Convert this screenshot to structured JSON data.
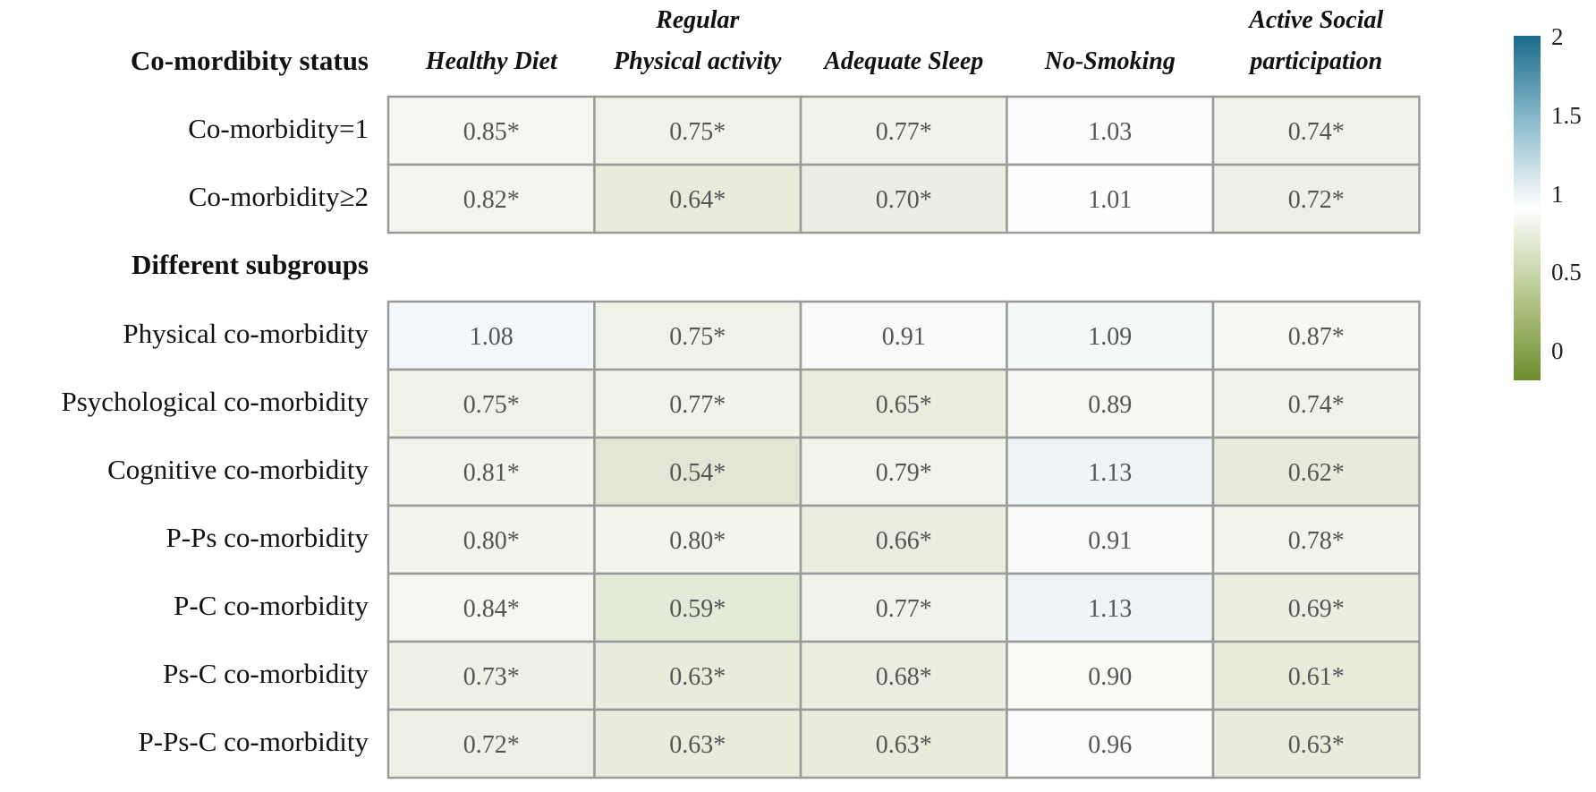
{
  "chart_data": {
    "type": "heatmap",
    "columns": [
      "Healthy Diet",
      "Regular Physical activity",
      "Adequate Sleep",
      "No-Smoking",
      "Active Social participation"
    ],
    "column_header_lines": [
      [
        "Healthy Diet"
      ],
      [
        "Regular",
        "Physical activity"
      ],
      [
        "Adequate Sleep"
      ],
      [
        "No-Smoking"
      ],
      [
        "Active Social",
        "participation"
      ]
    ],
    "sections": [
      {
        "title": "Co-mordibity status",
        "rows": [
          {
            "label": "Co-morbidity=1",
            "values": [
              0.85,
              0.75,
              0.77,
              1.03,
              0.74
            ],
            "display": [
              "0.85*",
              "0.75*",
              "0.77*",
              "1.03",
              "0.74*"
            ]
          },
          {
            "label": "Co-morbidity≥2",
            "values": [
              0.82,
              0.64,
              0.7,
              1.01,
              0.72
            ],
            "display": [
              "0.82*",
              "0.64*",
              "0.70*",
              "1.01",
              "0.72*"
            ]
          }
        ]
      },
      {
        "title": "Different subgroups",
        "rows": [
          {
            "label": "Physical co-morbidity",
            "values": [
              1.08,
              0.75,
              0.91,
              1.09,
              0.87
            ],
            "display": [
              "1.08",
              "0.75*",
              "0.91",
              "1.09",
              "0.87*"
            ]
          },
          {
            "label": "Psychological  co-morbidity",
            "values": [
              0.75,
              0.77,
              0.65,
              0.89,
              0.74
            ],
            "display": [
              "0.75*",
              "0.77*",
              "0.65*",
              "0.89",
              "0.74*"
            ]
          },
          {
            "label": "Cognitive  co-morbidity",
            "values": [
              0.81,
              0.54,
              0.79,
              1.13,
              0.62
            ],
            "display": [
              "0.81*",
              "0.54*",
              "0.79*",
              "1.13",
              "0.62*"
            ]
          },
          {
            "label": "P-Ps co-morbidity",
            "values": [
              0.8,
              0.8,
              0.66,
              0.91,
              0.78
            ],
            "display": [
              "0.80*",
              "0.80*",
              "0.66*",
              "0.91",
              "0.78*"
            ]
          },
          {
            "label": "P-C co-morbidity",
            "values": [
              0.84,
              0.59,
              0.77,
              1.13,
              0.69
            ],
            "display": [
              "0.84*",
              "0.59*",
              "0.77*",
              "1.13",
              "0.69*"
            ]
          },
          {
            "label": "Ps-C co-morbidity",
            "values": [
              0.73,
              0.63,
              0.68,
              0.9,
              0.61
            ],
            "display": [
              "0.73*",
              "0.63*",
              "0.68*",
              "0.90",
              "0.61*"
            ]
          },
          {
            "label": "P-Ps-C co-morbidity",
            "values": [
              0.72,
              0.63,
              0.63,
              0.96,
              0.63
            ],
            "display": [
              "0.72*",
              "0.63*",
              "0.63*",
              "0.96",
              "0.63*"
            ]
          }
        ]
      }
    ],
    "colorbar": {
      "ticks": [
        "2",
        "1.5",
        "1",
        "0.5",
        "0"
      ],
      "range": [
        0,
        2
      ],
      "color_low": "#6e8c2e",
      "color_mid": "#ffffff",
      "color_high": "#1b6a8a"
    },
    "colors": {
      "cell_border": "#9a9a9a",
      "cell_text": "#555555"
    }
  }
}
